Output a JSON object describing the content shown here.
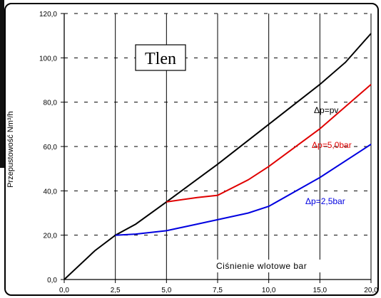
{
  "chart_data": {
    "type": "line",
    "title_box": "Tlen",
    "xlabel": "Ciśnienie wlotowe bar",
    "ylabel": "Przepustowość Nm³/h",
    "x_tick_labels": [
      "0,0",
      "2,5",
      "5,0",
      "7,5",
      "10,0",
      "15,0",
      "20,0"
    ],
    "x_tick_values": [
      0,
      2.5,
      5,
      7.5,
      10,
      15,
      20
    ],
    "y_tick_labels": [
      "0,0",
      "20,0",
      "40,0",
      "60,0",
      "80,0",
      "100,0",
      "120,0"
    ],
    "y_tick_values": [
      0,
      20,
      40,
      60,
      80,
      100,
      120
    ],
    "ylim": [
      0,
      120
    ],
    "grid": {
      "vertical": "solid",
      "horizontal": "dashed"
    },
    "series": [
      {
        "name": "Δp=pv",
        "color": "#000000",
        "x": [
          0,
          1.5,
          2.5,
          3.5,
          5,
          7.5,
          10,
          15,
          17.5,
          20
        ],
        "y": [
          0,
          13,
          20,
          25,
          35,
          52,
          70,
          88,
          98,
          111
        ]
      },
      {
        "name": "Δp=5,0bar",
        "color": "#e00000",
        "x": [
          5,
          6.5,
          7.5,
          9,
          10,
          15,
          17.5,
          20
        ],
        "y": [
          35,
          37,
          38,
          45,
          51,
          68,
          78,
          88
        ]
      },
      {
        "name": "Δp=2,5bar",
        "color": "#0000e0",
        "x": [
          2.5,
          3.5,
          5,
          6.5,
          7.5,
          9,
          10,
          15,
          20
        ],
        "y": [
          20,
          20.5,
          22,
          25,
          27,
          30,
          33,
          46,
          61
        ]
      }
    ]
  }
}
